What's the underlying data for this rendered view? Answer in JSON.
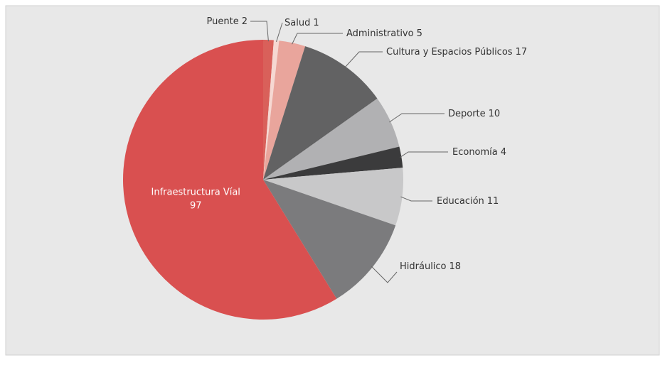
{
  "chart_data": {
    "type": "pie",
    "categories": [
      "Puente",
      "Salud",
      "Administrativo",
      "Cultura y Espacios Públicos",
      "Deporte",
      "Economía",
      "Educación",
      "Hidráulico",
      "Infraestructura Víal"
    ],
    "values": [
      2,
      1,
      5,
      17,
      10,
      4,
      11,
      18,
      97
    ],
    "colors": [
      "#d9605a",
      "#f6d8d2",
      "#e9a59c",
      "#626263",
      "#b1b1b3",
      "#3b3b3c",
      "#c8c8c9",
      "#7b7b7d",
      "#d95050"
    ]
  }
}
